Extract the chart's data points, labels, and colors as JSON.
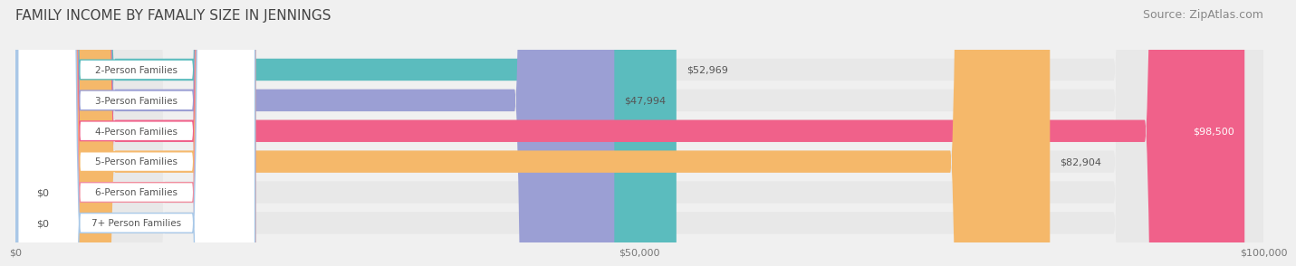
{
  "title": "FAMILY INCOME BY FAMALIY SIZE IN JENNINGS",
  "source": "Source: ZipAtlas.com",
  "categories": [
    "2-Person Families",
    "3-Person Families",
    "4-Person Families",
    "5-Person Families",
    "6-Person Families",
    "7+ Person Families"
  ],
  "values": [
    52969,
    47994,
    98500,
    82904,
    0,
    0
  ],
  "bar_colors": [
    "#5bbcbe",
    "#9b9fd4",
    "#f0618a",
    "#f5b86a",
    "#f08fa0",
    "#a8c8e8"
  ],
  "label_colors": [
    "#5bbcbe",
    "#9b9fd4",
    "#f0618a",
    "#f5b86a",
    "#f08fa0",
    "#a8c8e8"
  ],
  "value_labels": [
    "$52,969",
    "$47,994",
    "$98,500",
    "$82,904",
    "$0",
    "$0"
  ],
  "xlim": [
    0,
    100000
  ],
  "xticks": [
    0,
    50000,
    100000
  ],
  "xtick_labels": [
    "$0",
    "$50,000",
    "$100,000"
  ],
  "background_color": "#f0f0f0",
  "bar_bg_color": "#e8e8e8",
  "title_fontsize": 11,
  "source_fontsize": 9
}
